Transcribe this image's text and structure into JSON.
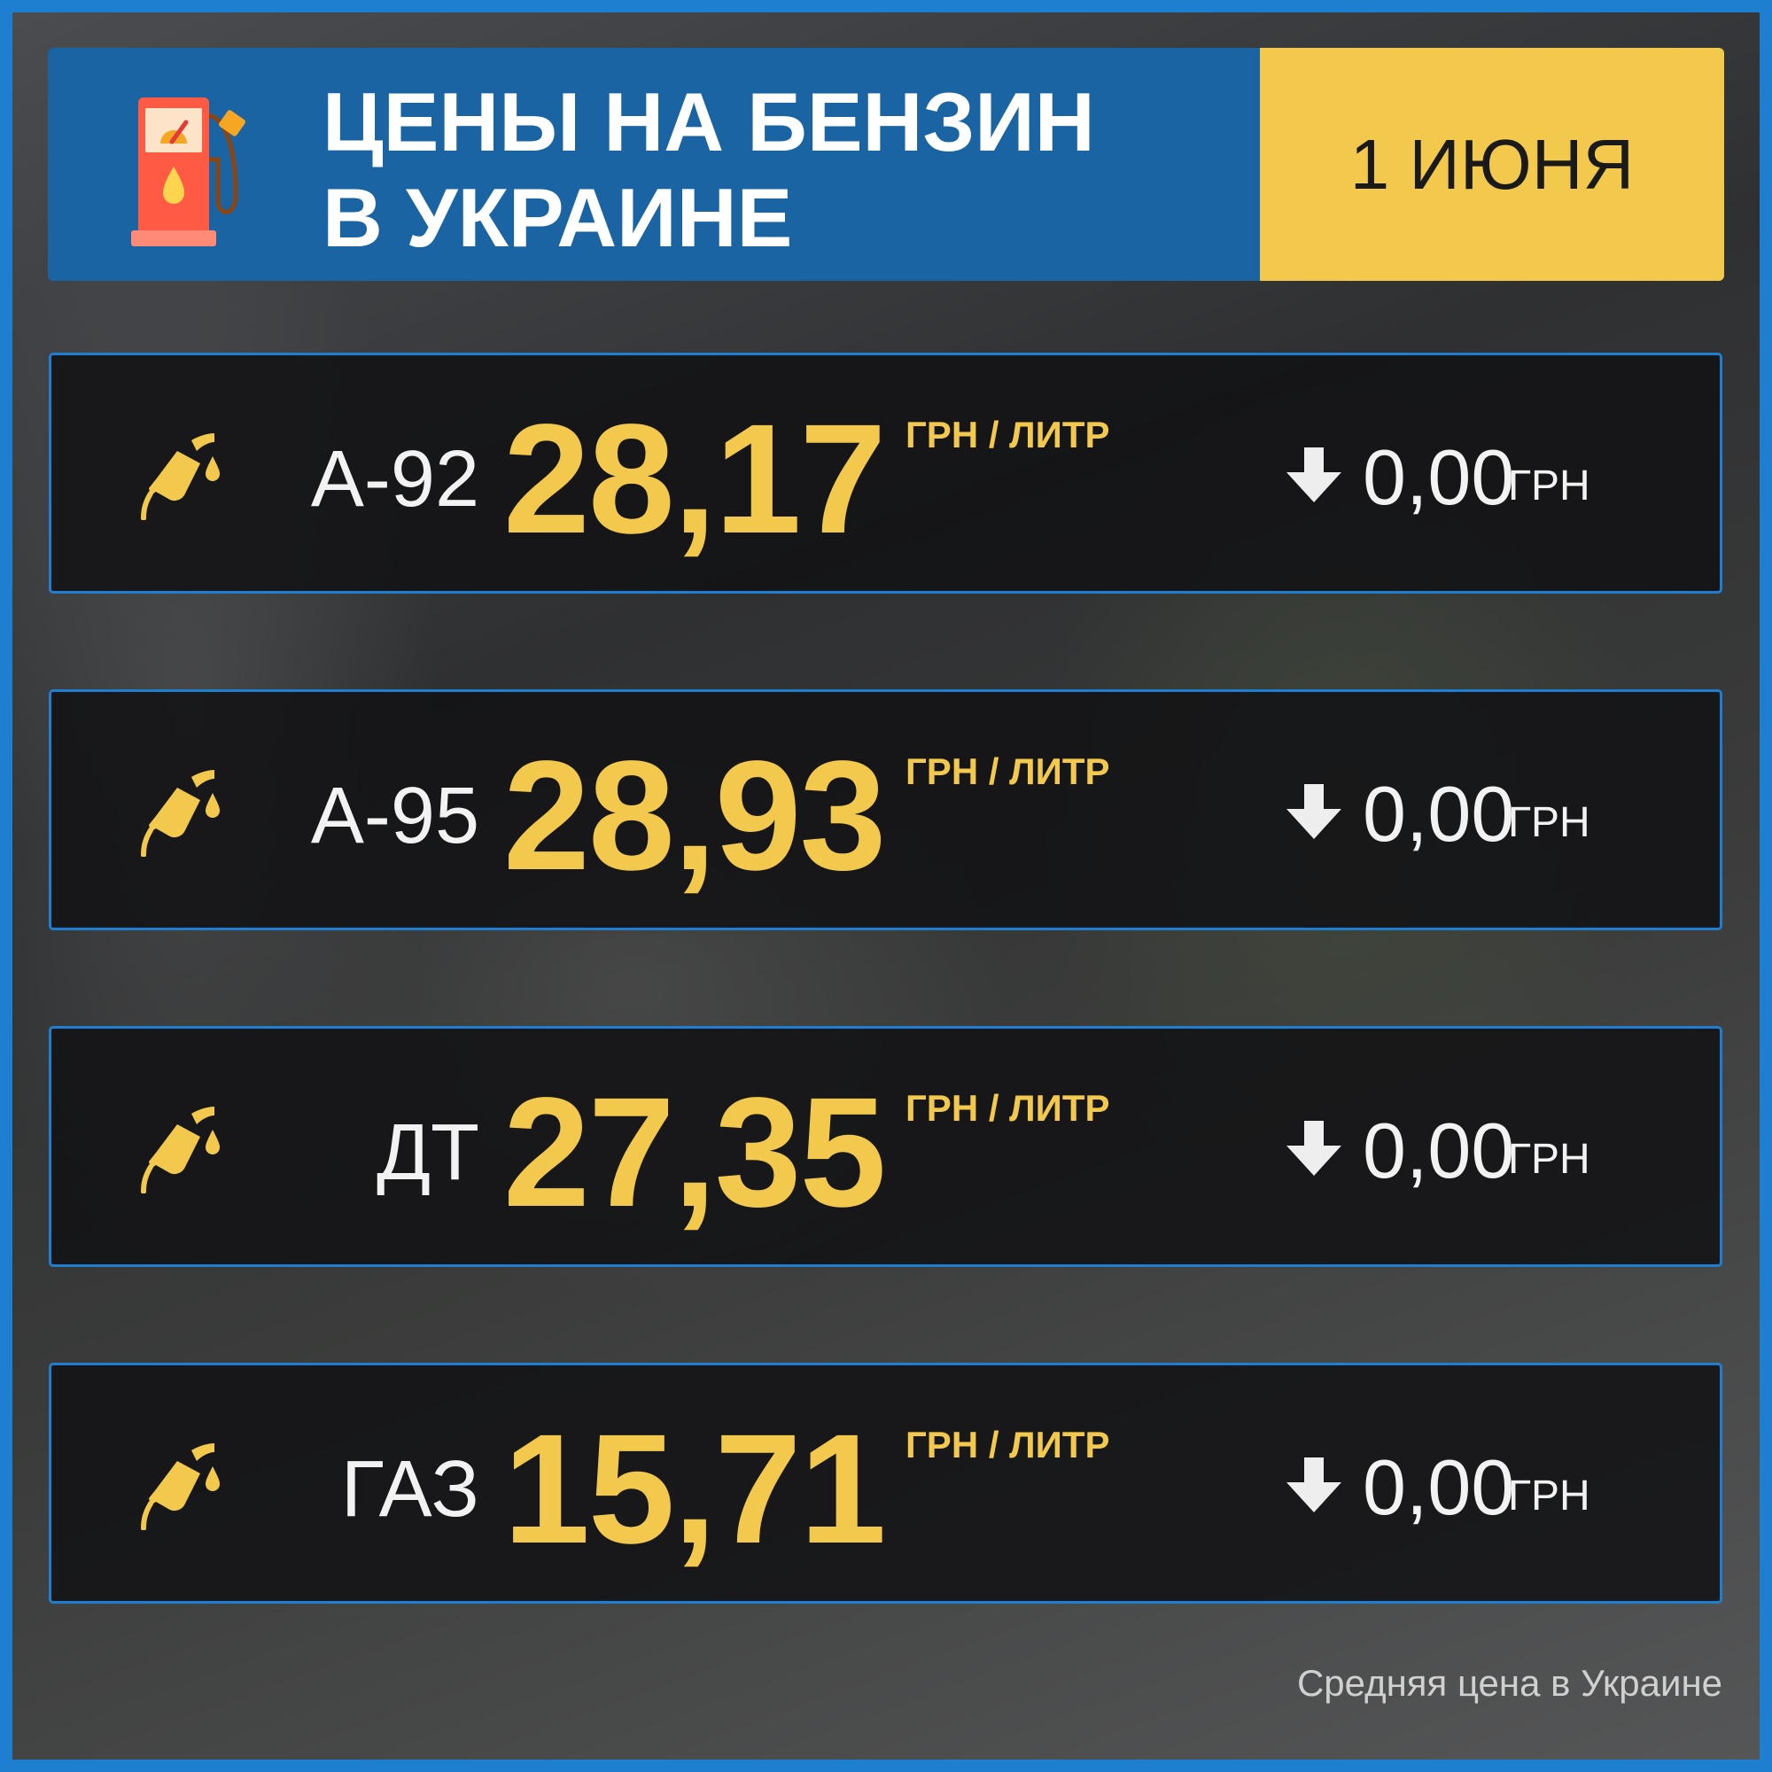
{
  "header": {
    "title_line1": "ЦЕНЫ НА БЕНЗИН",
    "title_line2": "В УКРАИНЕ",
    "date": "1 ИЮНЯ",
    "icon": "fuel-pump-icon"
  },
  "colors": {
    "border": "#1e7fd0",
    "header_blue": "#1a64a3",
    "accent_yellow": "#f2c94c"
  },
  "rows": [
    {
      "label": "А-92",
      "price": "28,17",
      "unit": "ГРН / ЛИТР",
      "change": "0,00",
      "change_unit": "ГРН",
      "direction": "down"
    },
    {
      "label": "А-95",
      "price": "28,93",
      "unit": "ГРН / ЛИТР",
      "change": "0,00",
      "change_unit": "ГРН",
      "direction": "down"
    },
    {
      "label": "ДТ",
      "price": "27,35",
      "unit": "ГРН / ЛИТР",
      "change": "0,00",
      "change_unit": "ГРН",
      "direction": "down"
    },
    {
      "label": "ГАЗ",
      "price": "15,71",
      "unit": "ГРН / ЛИТР",
      "change": "0,00",
      "change_unit": "ГРН",
      "direction": "down"
    }
  ],
  "footer": "Средняя цена в Украине"
}
